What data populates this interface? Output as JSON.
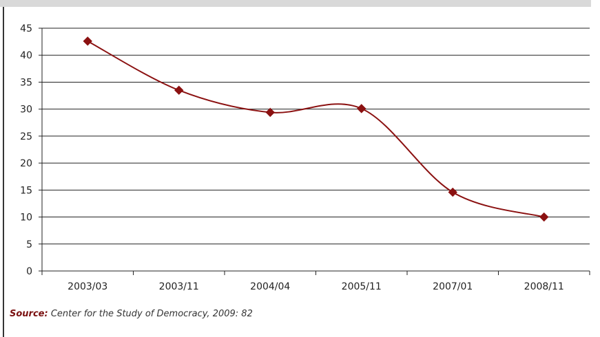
{
  "colors": {
    "series": "#8b1111",
    "grid": "#222222",
    "source_label": "#7a1010",
    "top_band": "#d9d9d9"
  },
  "chart_data": {
    "type": "line",
    "title": "",
    "xlabel": "",
    "ylabel": "",
    "categories": [
      "2003/03",
      "2003/11",
      "2004/04",
      "2005/11",
      "2007/01",
      "2008/11"
    ],
    "series": [
      {
        "values": [
          42.6,
          33.5,
          29.4,
          30.1,
          14.6,
          10.0
        ],
        "marker": "diamond",
        "smooth": true
      }
    ],
    "ylim": [
      0,
      45
    ],
    "yticks": [
      0,
      5,
      10,
      15,
      20,
      25,
      30,
      35,
      40,
      45
    ],
    "grid": "horizontal",
    "legend": "none"
  },
  "source": {
    "label": "Source:",
    "text": "Center for the Study of Democracy, 2009: 82"
  }
}
